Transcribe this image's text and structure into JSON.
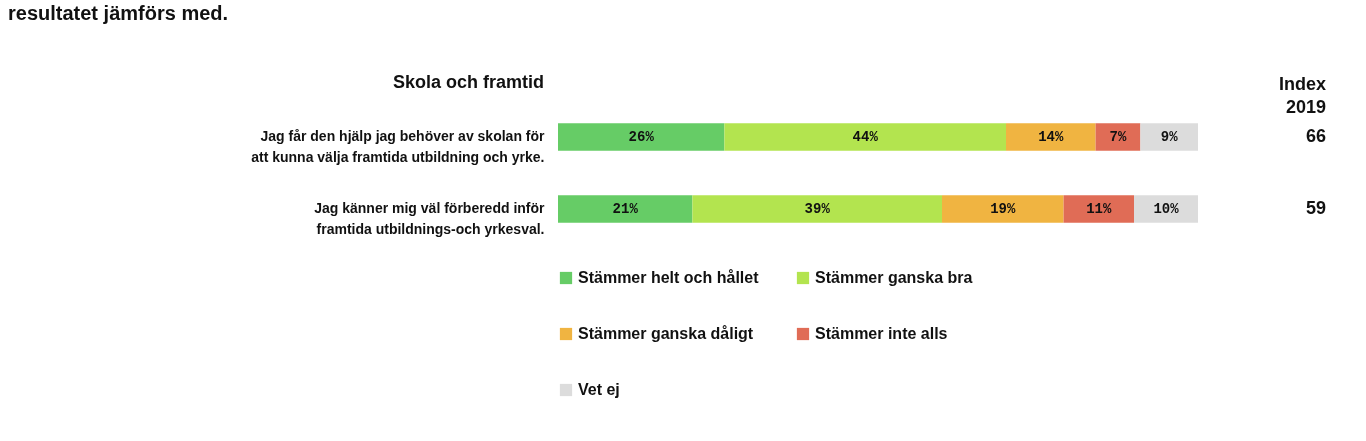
{
  "chart_data": {
    "type": "bar",
    "orientation": "horizontal",
    "stacked": true,
    "title": "resultatet jämförs med.",
    "ylabel": "Skola och framtid",
    "categories": [
      "Jag får den hjälp jag behöver av skolan för att kunna välja framtida utbildning och yrke.",
      "Jag känner mig väl förberedd inför framtida utbildnings-och yrkesval."
    ],
    "series": [
      {
        "name": "Stämmer helt och hållet",
        "color": "#66cc66",
        "values": [
          26,
          21
        ],
        "value_labels": [
          "26%",
          "21%"
        ]
      },
      {
        "name": "Stämmer ganska bra",
        "color": "#b3e44f",
        "values": [
          44,
          39
        ],
        "value_labels": [
          "44%",
          "39%"
        ]
      },
      {
        "name": "Stämmer ganska dåligt",
        "color": "#f0b441",
        "values": [
          14,
          19
        ],
        "value_labels": [
          "14%",
          "19%"
        ]
      },
      {
        "name": "Stämmer inte alls",
        "color": "#e06c56",
        "values": [
          7,
          11
        ],
        "value_labels": [
          "7%",
          "11%"
        ]
      },
      {
        "name": "Vet ej",
        "color": "#dcdcdc",
        "values": [
          9,
          10
        ],
        "value_labels": [
          "9%",
          "10%"
        ]
      }
    ],
    "legend": "bottom",
    "tick_labels": "y",
    "annotations": [
      "Index 2019",
      "66",
      "59"
    ]
  }
}
